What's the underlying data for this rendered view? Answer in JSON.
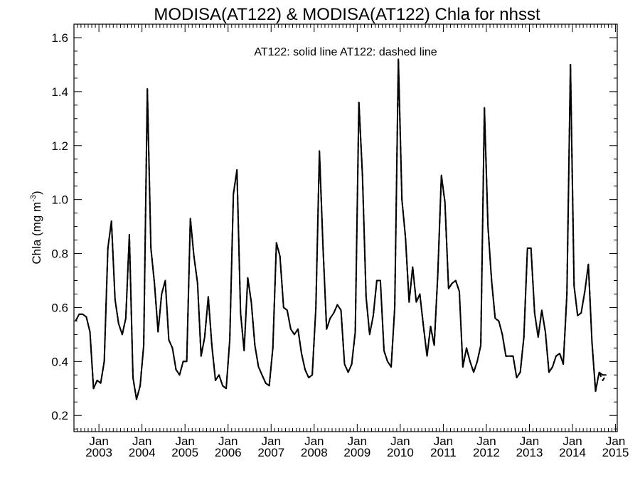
{
  "chart_data": {
    "type": "line",
    "title": "MODISA(AT122) & MODISA(AT122)  Chla for nhsst",
    "ylabel": "Chla (mg m",
    "ylabel_sup": "-3",
    "ylabel_close": ")",
    "annotation": "AT122: solid line   AT122: dashed line",
    "xlim": [
      2002.42,
      2015.04
    ],
    "ylim": [
      0.14,
      1.65
    ],
    "y_ticks": [
      0.2,
      0.4,
      0.6,
      0.8,
      1.0,
      1.2,
      1.4,
      1.6
    ],
    "y_tick_labels": [
      "0.2",
      "0.4",
      "0.6",
      "0.8",
      "1.0",
      "1.2",
      "1.4",
      "1.6"
    ],
    "y_minor_step": 0.05,
    "x_ticks": [
      {
        "month": "Jan",
        "year": "2003",
        "t": 2003.0
      },
      {
        "month": "Jan",
        "year": "2004",
        "t": 2004.0
      },
      {
        "month": "Jan",
        "year": "2005",
        "t": 2005.0
      },
      {
        "month": "Jan",
        "year": "2006",
        "t": 2006.0
      },
      {
        "month": "Jan",
        "year": "2007",
        "t": 2007.0
      },
      {
        "month": "Jan",
        "year": "2008",
        "t": 2008.0
      },
      {
        "month": "Jan",
        "year": "2009",
        "t": 2009.0
      },
      {
        "month": "Jan",
        "year": "2010",
        "t": 2010.0
      },
      {
        "month": "Jan",
        "year": "2011",
        "t": 2011.0
      },
      {
        "month": "Jan",
        "year": "2012",
        "t": 2012.0
      },
      {
        "month": "Jan",
        "year": "2013",
        "t": 2013.0
      },
      {
        "month": "Jan",
        "year": "2014",
        "t": 2014.0
      },
      {
        "month": "Jan",
        "year": "2015",
        "t": 2015.0
      }
    ],
    "grid": false,
    "series": [
      {
        "style": "solid",
        "color": "#000000",
        "t0": 2002.458,
        "step": 0.0833,
        "values": [
          0.55,
          0.575,
          0.575,
          0.565,
          0.51,
          0.3,
          0.33,
          0.32,
          0.4,
          0.82,
          0.92,
          0.63,
          0.54,
          0.5,
          0.56,
          0.87,
          0.34,
          0.26,
          0.31,
          0.46,
          1.41,
          0.82,
          0.69,
          0.51,
          0.65,
          0.7,
          0.48,
          0.45,
          0.37,
          0.35,
          0.4,
          0.4,
          0.93,
          0.79,
          0.69,
          0.42,
          0.49,
          0.64,
          0.46,
          0.33,
          0.35,
          0.31,
          0.3,
          0.48,
          1.02,
          1.11,
          0.58,
          0.44,
          0.71,
          0.62,
          0.46,
          0.38,
          0.35,
          0.32,
          0.31,
          0.45,
          0.84,
          0.79,
          0.6,
          0.59,
          0.52,
          0.5,
          0.52,
          0.43,
          0.37,
          0.34,
          0.35,
          0.6,
          1.18,
          0.82,
          0.52,
          0.56,
          0.58,
          0.61,
          0.59,
          0.39,
          0.36,
          0.39,
          0.51,
          1.36,
          1.09,
          0.64,
          0.5,
          0.57,
          0.7,
          0.7,
          0.44,
          0.4,
          0.38,
          0.6,
          1.52,
          1.0,
          0.86,
          0.62,
          0.75,
          0.62,
          0.65,
          0.53,
          0.42,
          0.53,
          0.46,
          0.72,
          1.09,
          0.99,
          0.67,
          0.69,
          0.7,
          0.66,
          0.38,
          0.45,
          0.4,
          0.36,
          0.4,
          0.46,
          1.34,
          0.9,
          0.7,
          0.56,
          0.55,
          0.5,
          0.42,
          0.42,
          0.42,
          0.34,
          0.36,
          0.49,
          0.82,
          0.82,
          0.58,
          0.49,
          0.59,
          0.51,
          0.36,
          0.38,
          0.42,
          0.43,
          0.39,
          0.65,
          1.5,
          0.68,
          0.57,
          0.58,
          0.66,
          0.76,
          0.47,
          0.29,
          0.36,
          0.35,
          0.35
        ]
      },
      {
        "style": "dashed",
        "color": "#000000",
        "t0": 2002.458,
        "step": 0.0833,
        "values": [
          0.55,
          0.575,
          0.575,
          0.565,
          0.51,
          0.3,
          0.33,
          0.32,
          0.4,
          0.82,
          0.92,
          0.63,
          0.54,
          0.5,
          0.56,
          0.87,
          0.34,
          0.26,
          0.31,
          0.46,
          1.41,
          0.82,
          0.69,
          0.51,
          0.65,
          0.7,
          0.48,
          0.45,
          0.37,
          0.35,
          0.4,
          0.4,
          0.93,
          0.79,
          0.69,
          0.42,
          0.49,
          0.64,
          0.46,
          0.33,
          0.35,
          0.31,
          0.3,
          0.48,
          1.02,
          1.11,
          0.58,
          0.44,
          0.71,
          0.62,
          0.46,
          0.38,
          0.35,
          0.32,
          0.31,
          0.45,
          0.84,
          0.79,
          0.6,
          0.59,
          0.52,
          0.5,
          0.52,
          0.43,
          0.37,
          0.34,
          0.35,
          0.6,
          1.18,
          0.82,
          0.52,
          0.56,
          0.58,
          0.61,
          0.59,
          0.39,
          0.36,
          0.39,
          0.51,
          1.36,
          1.09,
          0.64,
          0.5,
          0.57,
          0.7,
          0.7,
          0.44,
          0.4,
          0.38,
          0.6,
          1.52,
          1.0,
          0.86,
          0.62,
          0.75,
          0.62,
          0.65,
          0.53,
          0.42,
          0.53,
          0.46,
          0.72,
          1.09,
          0.99,
          0.67,
          0.69,
          0.7,
          0.66,
          0.38,
          0.45,
          0.4,
          0.36,
          0.4,
          0.46,
          1.34,
          0.9,
          0.7,
          0.56,
          0.55,
          0.5,
          0.42,
          0.42,
          0.42,
          0.34,
          0.36,
          0.49,
          0.82,
          0.82,
          0.58,
          0.49,
          0.59,
          0.51,
          0.36,
          0.38,
          0.42,
          0.43,
          0.39,
          0.65,
          1.5,
          0.68,
          0.57,
          0.58,
          0.66,
          0.76,
          0.47,
          0.29,
          0.36,
          0.33,
          0.35
        ]
      }
    ]
  }
}
